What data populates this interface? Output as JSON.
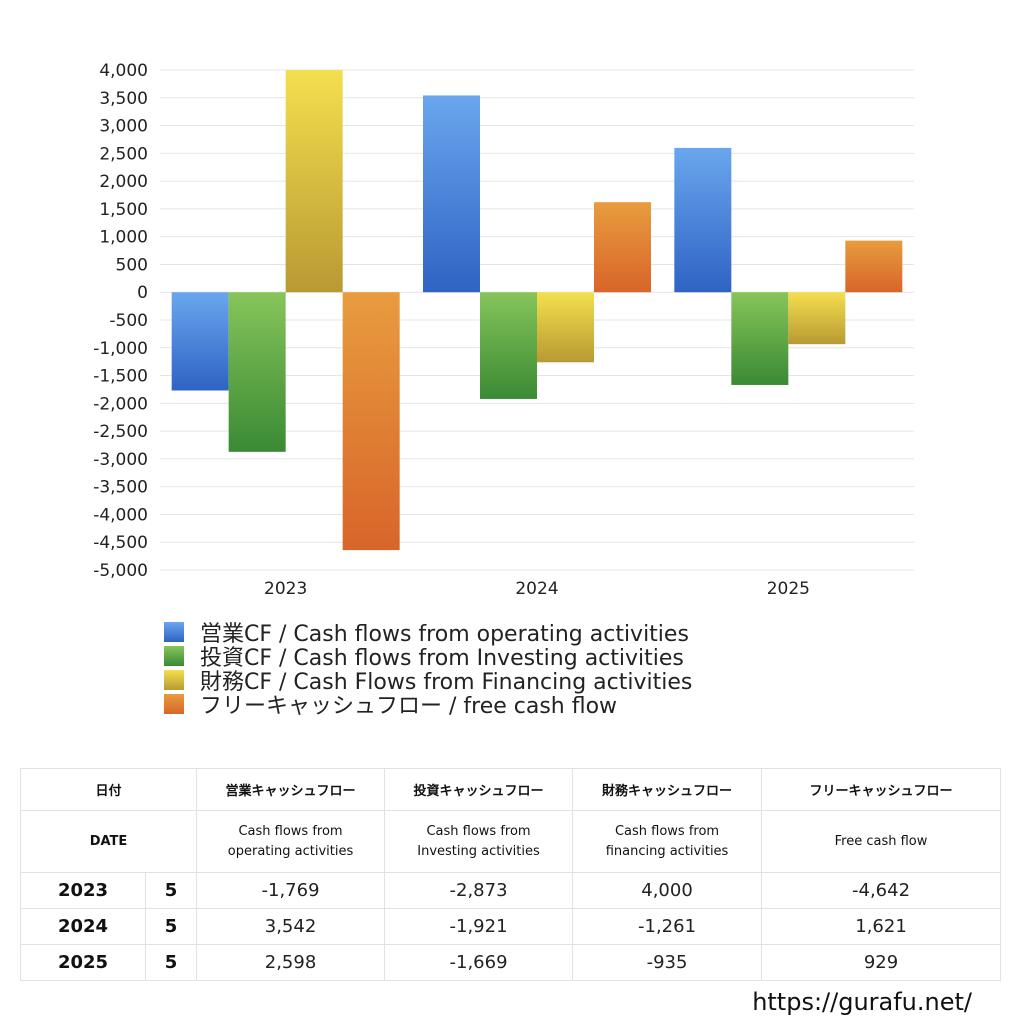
{
  "chart_data": {
    "type": "bar",
    "categories": [
      "2023",
      "2024",
      "2025"
    ],
    "series": [
      {
        "name": "営業CF / Cash flows from operating activities",
        "values": [
          -1769,
          3542,
          2598
        ],
        "color": "#3f7ee0"
      },
      {
        "name": "投資CF / Cash flows from Investing activities",
        "values": [
          -2873,
          -1921,
          -1669
        ],
        "color": "#4f9e3c"
      },
      {
        "name": "財務CF / Cash Flows from Financing activities",
        "values": [
          4000,
          -1261,
          -935
        ],
        "color": "#d8c03a"
      },
      {
        "name": "フリーキャッシュフロー / free cash flow",
        "values": [
          -4642,
          1621,
          929
        ],
        "color": "#e07a2e"
      }
    ],
    "ylim": [
      -5000,
      4000
    ],
    "yticks": [
      4000,
      3500,
      3000,
      2500,
      2000,
      1500,
      1000,
      500,
      0,
      -500,
      -1000,
      -1500,
      -2000,
      -2500,
      -3000,
      -3500,
      -4000,
      -4500,
      -5000
    ],
    "ytick_labels": [
      "4,000",
      "3,500",
      "3,000",
      "2,500",
      "2,000",
      "1,500",
      "1,000",
      "500",
      "0",
      "-500",
      "-1,000",
      "-1,500",
      "-2,000",
      "-2,500",
      "-3,000",
      "-3,500",
      "-4,000",
      "-4,500",
      "-5,000"
    ],
    "grid": true,
    "legend_position": "bottom"
  },
  "table": {
    "headers": {
      "date_jp": "日付",
      "operating_jp": "営業キャッシュフロー",
      "investing_jp": "投資キャッシュフロー",
      "financing_jp": "財務キャッシュフロー",
      "free_jp": "フリーキャッシュフロー",
      "date_en": "DATE",
      "operating_en_1": "Cash flows from",
      "operating_en_2": "operating activities",
      "investing_en_1": "Cash flows from",
      "investing_en_2": "Investing activities",
      "financing_en_1": "Cash flows from",
      "financing_en_2": "financing activities",
      "free_en": "Free cash flow"
    },
    "rows": [
      {
        "year": "2023",
        "month": "5",
        "operating": "-1,769",
        "investing": "-2,873",
        "financing": "4,000",
        "free": "-4,642"
      },
      {
        "year": "2024",
        "month": "5",
        "operating": "3,542",
        "investing": "-1,921",
        "financing": "-1,261",
        "free": "1,621"
      },
      {
        "year": "2025",
        "month": "5",
        "operating": "2,598",
        "investing": "-1,669",
        "financing": "-935",
        "free": "929"
      }
    ]
  },
  "footer": {
    "site": "https://gurafu.net/"
  }
}
